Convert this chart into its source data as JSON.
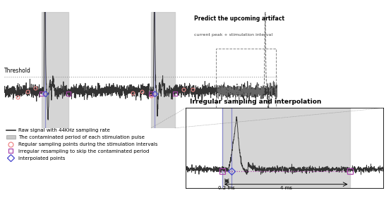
{
  "title_top": "Predict the upcoming artifact",
  "subtitle_top": "current peak + stimulation interval",
  "title_bottom": "Irregular sampling and interpolation",
  "threshold_label": "Threshold",
  "xlabel_02": "0.2 ms",
  "xlabel_4": "4 ms",
  "legend_items": [
    "Raw signal with 44KHz sampling rate",
    "The contaminated period of each stimulation pulse",
    "Regular sampling points during the stimulation intervals",
    "Irregular resampling to skip the contaminated period",
    "Interpolated points"
  ],
  "colors": {
    "signal": "#333333",
    "dashed_signal": "#666666",
    "threshold": "#888888",
    "contaminated_bg": "#C8C8C8",
    "vertical_line": "#8888CC",
    "pink_circle": "#EE8888",
    "purple_square": "#AA44AA",
    "blue_diamond": "#4444CC",
    "interp_line": "#AA44AA",
    "background": "#FFFFFF",
    "box_edge": "#888888"
  },
  "fig_width": 5.54,
  "fig_height": 2.84,
  "dpi": 100
}
